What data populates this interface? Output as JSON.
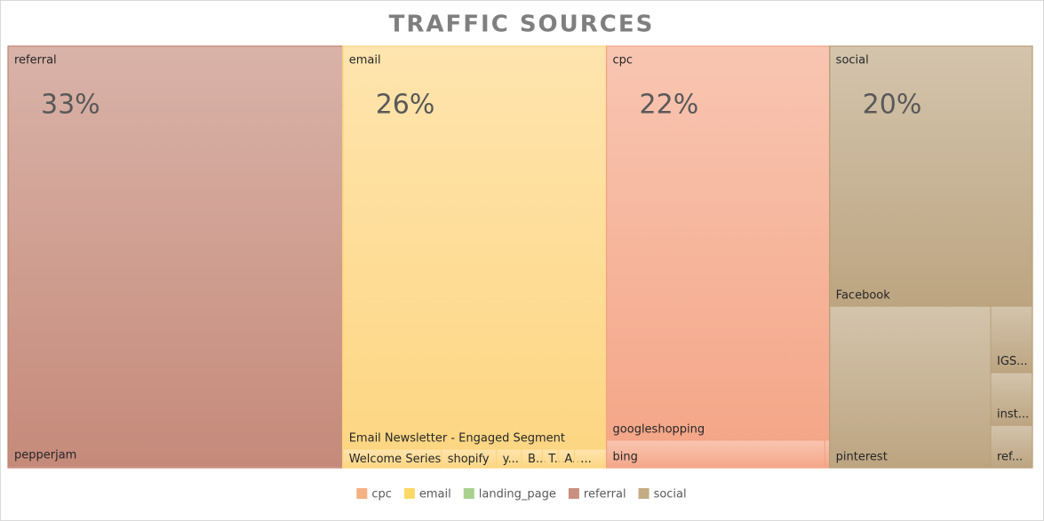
{
  "chart_data": {
    "type": "treemap",
    "title": "TRAFFIC SOURCES",
    "series": [
      {
        "name": "referral",
        "color": "#c28473",
        "value": 33,
        "value_label": "33%",
        "children": [
          {
            "name": "pepperjam",
            "value": 32.5
          },
          {
            "name": null,
            "value": 0.15
          }
        ]
      },
      {
        "name": "email",
        "color": "#fdd47c",
        "value": 26,
        "value_label": "26%",
        "children": [
          {
            "name": "Email Newsletter - Engaged Segment",
            "value": 24.9
          },
          {
            "name": "Welcome Series",
            "value": 0.43
          },
          {
            "name": "shopify",
            "value": 0.24
          },
          {
            "name": "y...",
            "value": 0.11
          },
          {
            "name": "B...",
            "value": 0.09
          },
          {
            "name": "T...",
            "value": 0.07
          },
          {
            "name": "A...",
            "value": 0.07
          },
          {
            "name": "...",
            "value": 0.14
          }
        ]
      },
      {
        "name": "cpc",
        "color": "#f4a282",
        "value": 22,
        "value_label": "22%",
        "children": [
          {
            "name": "googleshopping",
            "value": 20.1
          },
          {
            "name": "bing",
            "value": 1.38
          },
          {
            "name": null,
            "value": 0.03
          }
        ]
      },
      {
        "name": "social",
        "color": "#b9a07a",
        "value": 20,
        "value_label": "20%",
        "children": [
          {
            "name": "Facebook",
            "value": 12.2
          },
          {
            "name": "pinterest",
            "value": 6.02
          },
          {
            "name": "IGS...",
            "value": 0.64
          },
          {
            "name": "inst...",
            "value": 0.51
          },
          {
            "name": "ref...",
            "value": 0.41
          }
        ]
      }
    ],
    "legend": [
      {
        "name": "cpc",
        "color": "#f4b183"
      },
      {
        "name": "email",
        "color": "#ffd966"
      },
      {
        "name": "landing_page",
        "color": "#a9d18e"
      },
      {
        "name": "referral",
        "color": "#c9907f"
      },
      {
        "name": "social",
        "color": "#c4ab84"
      }
    ]
  }
}
